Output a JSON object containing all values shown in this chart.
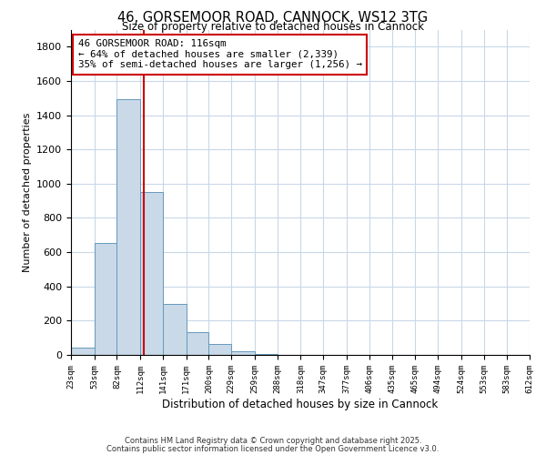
{
  "title": "46, GORSEMOOR ROAD, CANNOCK, WS12 3TG",
  "subtitle": "Size of property relative to detached houses in Cannock",
  "xlabel": "Distribution of detached houses by size in Cannock",
  "ylabel": "Number of detached properties",
  "bar_color": "#c9d9e8",
  "bar_edge_color": "#6699bb",
  "bins": [
    23,
    53,
    82,
    112,
    141,
    171,
    200,
    229,
    259,
    288,
    318,
    347,
    377,
    406,
    435,
    465,
    494,
    524,
    553,
    583,
    612
  ],
  "counts": [
    45,
    655,
    1495,
    950,
    295,
    135,
    65,
    20,
    5,
    2,
    0,
    0,
    0,
    0,
    0,
    0,
    0,
    0,
    0,
    0
  ],
  "tick_labels": [
    "23sqm",
    "53sqm",
    "82sqm",
    "112sqm",
    "141sqm",
    "171sqm",
    "200sqm",
    "229sqm",
    "259sqm",
    "288sqm",
    "318sqm",
    "347sqm",
    "377sqm",
    "406sqm",
    "435sqm",
    "465sqm",
    "494sqm",
    "524sqm",
    "553sqm",
    "583sqm",
    "612sqm"
  ],
  "vline_x": 116,
  "vline_color": "#cc0000",
  "annotation_title": "46 GORSEMOOR ROAD: 116sqm",
  "annotation_line1": "← 64% of detached houses are smaller (2,339)",
  "annotation_line2": "35% of semi-detached houses are larger (1,256) →",
  "annotation_box_color": "#ffffff",
  "annotation_box_edge": "#cc0000",
  "ylim": [
    0,
    1900
  ],
  "yticks": [
    0,
    200,
    400,
    600,
    800,
    1000,
    1200,
    1400,
    1600,
    1800
  ],
  "footnote1": "Contains HM Land Registry data © Crown copyright and database right 2025.",
  "footnote2": "Contains public sector information licensed under the Open Government Licence v3.0.",
  "background_color": "#ffffff",
  "grid_color": "#c8d8e8"
}
